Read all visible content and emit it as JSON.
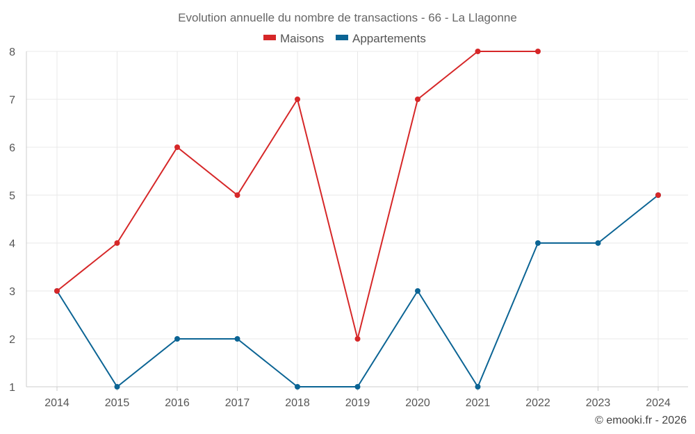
{
  "chart_data": {
    "type": "line",
    "title": "Evolution annuelle du nombre de transactions - 66 - La Llagonne",
    "categories": [
      "2014",
      "2015",
      "2016",
      "2017",
      "2018",
      "2019",
      "2020",
      "2021",
      "2022",
      "2023",
      "2024"
    ],
    "series": [
      {
        "name": "Maisons",
        "color": "#d62728",
        "values": [
          3,
          4,
          6,
          5,
          7,
          2,
          7,
          8,
          8,
          null,
          5
        ]
      },
      {
        "name": "Appartements",
        "color": "#0b6494",
        "values": [
          3,
          1,
          2,
          2,
          1,
          1,
          3,
          1,
          4,
          4,
          5
        ]
      }
    ],
    "ylim": [
      1,
      8
    ],
    "yticks": [
      1,
      2,
      3,
      4,
      5,
      6,
      7,
      8
    ],
    "xlabel": "",
    "ylabel": "",
    "grid": true,
    "legend": "top-center"
  },
  "credit": "© emooki.fr - 2026"
}
